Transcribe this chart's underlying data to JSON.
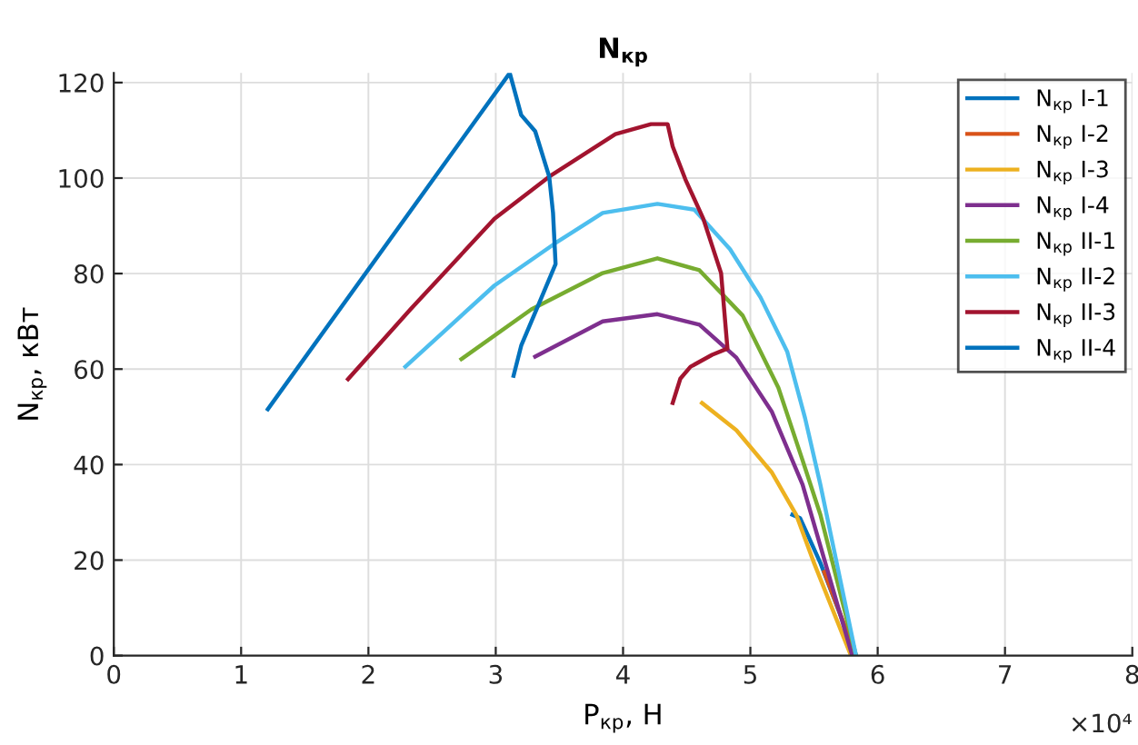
{
  "chart_data": {
    "type": "line",
    "title": "N$_{кр}$",
    "xlabel": "P$_{кр}$, Н",
    "ylabel": "N$_{кр}$, кВт",
    "annotations": [
      "×10⁴"
    ],
    "xlim": [
      0,
      8
    ],
    "ylim": [
      0,
      122
    ],
    "xticks": [
      0,
      1,
      2,
      3,
      4,
      5,
      6,
      7,
      8
    ],
    "yticks": [
      0,
      20,
      40,
      60,
      80,
      100,
      120
    ],
    "grid": true,
    "legend": "top right",
    "marker": "none",
    "line_style": "solid",
    "series": [
      {
        "name": "N$_{кр}$ I-1",
        "color": "#0072bd",
        "x": [
          5.33,
          5.39,
          5.55,
          5.83
        ],
        "values": [
          29.5,
          28.8,
          19.4,
          0
        ]
      },
      {
        "name": "N$_{кр}$ I-2",
        "color": "#d95319",
        "x": [
          5.58,
          5.83
        ],
        "values": [
          17.5,
          0
        ]
      },
      {
        "name": "N$_{кр}$ I-3",
        "color": "#edb120",
        "x": [
          4.62,
          4.89,
          5.17,
          5.36,
          5.5,
          5.79
        ],
        "values": [
          52.9,
          47.2,
          38.3,
          29.5,
          19.4,
          0
        ]
      },
      {
        "name": "N$_{кр}$ I-4",
        "color": "#7e2f8e",
        "x": [
          3.31,
          3.84,
          4.27,
          4.6,
          4.89,
          5.17,
          5.41,
          5.8
        ],
        "values": [
          62.6,
          70.0,
          71.5,
          69.3,
          62.4,
          51.0,
          35.8,
          0
        ]
      },
      {
        "name": "N$_{кр}$ II-1",
        "color": "#77ac30",
        "x": [
          2.73,
          3.28,
          3.84,
          4.27,
          4.6,
          4.94,
          5.22,
          5.41,
          5.55,
          5.83
        ],
        "values": [
          62.1,
          72.5,
          80.1,
          83.2,
          80.7,
          71.2,
          56.1,
          40.9,
          29.5,
          0
        ]
      },
      {
        "name": "N$_{кр}$ II-2",
        "color": "#4dbeee",
        "x": [
          2.29,
          2.99,
          3.47,
          3.84,
          4.27,
          4.56,
          4.84,
          5.08,
          5.29,
          5.43,
          5.55,
          5.83
        ],
        "values": [
          60.5,
          77.5,
          86.4,
          92.7,
          94.6,
          93.4,
          85.1,
          75.0,
          63.6,
          49.7,
          35.8,
          0
        ]
      },
      {
        "name": "N$_{кр}$ II-3",
        "color": "#a2142f",
        "x": [
          1.84,
          2.33,
          2.99,
          3.42,
          3.94,
          4.22,
          4.35,
          4.39,
          4.49,
          4.63,
          4.77,
          4.82,
          4.7,
          4.53,
          4.45,
          4.39
        ],
        "values": [
          57.9,
          72.5,
          91.5,
          100.3,
          109.2,
          111.3,
          111.3,
          106.6,
          99.7,
          91.5,
          80.1,
          64.3,
          63.0,
          60.5,
          58.0,
          52.9
        ]
      },
      {
        "name": "N$_{кр}$ II-4",
        "color": "#0072bd",
        "x": [
          1.21,
          3.11,
          3.2,
          3.31,
          3.42,
          3.45,
          3.47,
          3.32,
          3.2,
          3.14
        ],
        "values": [
          51.6,
          122.0,
          113.2,
          109.8,
          100.3,
          92.7,
          82.0,
          72.5,
          64.9,
          58.6
        ]
      }
    ]
  }
}
